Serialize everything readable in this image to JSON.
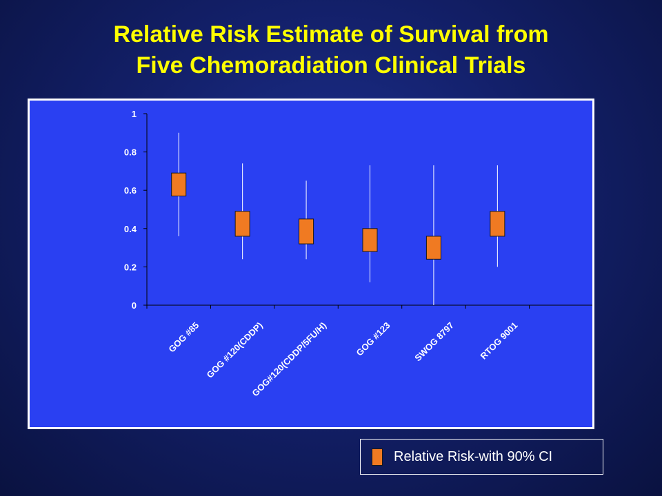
{
  "title": {
    "line1": "Relative Risk Estimate of Survival from",
    "line2": "Five Chemoradiation Clinical Trials"
  },
  "legend": {
    "label": "Relative Risk-with 90% CI"
  },
  "colors": {
    "panel": "#2a40f2",
    "box": "#f07a22",
    "title": "#ffff00",
    "axis": "#000000",
    "text": "#ffffff"
  },
  "chart_data": {
    "type": "box",
    "title": "Relative Risk Estimate of Survival from Five Chemoradiation Clinical Trials",
    "xlabel": "",
    "ylabel": "",
    "ylim": [
      0,
      1
    ],
    "yticks": [
      "0",
      "0.2",
      "0.4",
      "0.6",
      "0.8",
      "1"
    ],
    "categories": [
      "GOG #85",
      "GOG #120(CDDP)",
      "GOG#120(CDDP/5FU/H)",
      "GOG #123",
      "SWOG 8797",
      "RTOG 9001"
    ],
    "series": [
      {
        "name": "Relative Risk-with 90% CI",
        "boxes": [
          {
            "low": 0.36,
            "q1": 0.57,
            "q3": 0.69,
            "high": 0.9
          },
          {
            "low": 0.24,
            "q1": 0.36,
            "q3": 0.49,
            "high": 0.74
          },
          {
            "low": 0.24,
            "q1": 0.32,
            "q3": 0.45,
            "high": 0.65
          },
          {
            "low": 0.12,
            "q1": 0.28,
            "q3": 0.4,
            "high": 0.73
          },
          {
            "low": 0.0,
            "q1": 0.24,
            "q3": 0.36,
            "high": 0.73
          },
          {
            "low": 0.2,
            "q1": 0.36,
            "q3": 0.49,
            "high": 0.73
          }
        ]
      }
    ],
    "grid": false,
    "legend_position": "bottom-right"
  }
}
